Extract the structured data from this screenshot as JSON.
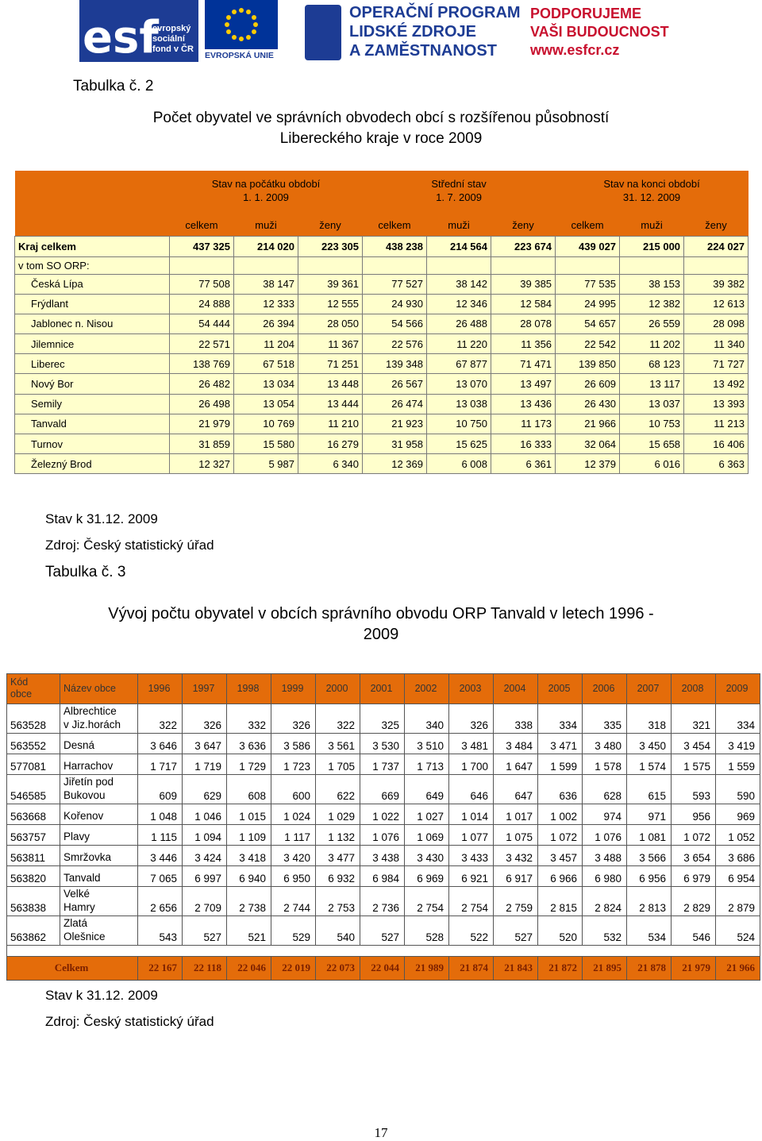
{
  "header": {
    "esf": "esf",
    "esf_text": [
      "evropský",
      "sociální",
      "fond v ČR"
    ],
    "eu": "EVROPSKÁ UNIE",
    "op": [
      "OPERAČNÍ PROGRAM",
      "LIDSKÉ ZDROJE",
      "A ZAMĚSTNANOST"
    ],
    "slogan": [
      "PODPORUJEME",
      "VAŠI BUDOUCNOST"
    ],
    "url": "www.esfcr.cz"
  },
  "table1": {
    "label": "Tabulka č. 2",
    "title": [
      "Počet obyvatel ve správních obvodech obcí s rozšířenou působností",
      "Libereckého kraje v roce 2009"
    ],
    "groups": [
      [
        "Stav na počátku období",
        "1. 1. 2009"
      ],
      [
        "Střední stav",
        "1. 7. 2009"
      ],
      [
        "Stav na konci období",
        "31. 12. 2009"
      ]
    ],
    "subheaders": [
      "celkem",
      "muži",
      "ženy",
      "celkem",
      "muži",
      "ženy",
      "celkem",
      "muži",
      "ženy"
    ],
    "total": [
      "Kraj celkem",
      "437 325",
      "214 020",
      "223 305",
      "438 238",
      "214 564",
      "223 674",
      "439 027",
      "215 000",
      "224 027"
    ],
    "subtitle": "v tom SO ORP:",
    "rows": [
      [
        "Česká Lípa",
        "77 508",
        "38 147",
        "39 361",
        "77 527",
        "38 142",
        "39 385",
        "77 535",
        "38 153",
        "39 382"
      ],
      [
        "Frýdlant",
        "24 888",
        "12 333",
        "12 555",
        "24 930",
        "12 346",
        "12 584",
        "24 995",
        "12 382",
        "12 613"
      ],
      [
        "Jablonec n. Nisou",
        "54 444",
        "26 394",
        "28 050",
        "54 566",
        "26 488",
        "28 078",
        "54 657",
        "26 559",
        "28 098"
      ],
      [
        "Jilemnice",
        "22 571",
        "11 204",
        "11 367",
        "22 576",
        "11 220",
        "11 356",
        "22 542",
        "11 202",
        "11 340"
      ],
      [
        "Liberec",
        "138 769",
        "67 518",
        "71 251",
        "139 348",
        "67 877",
        "71 471",
        "139 850",
        "68 123",
        "71 727"
      ],
      [
        "Nový Bor",
        "26 482",
        "13 034",
        "13 448",
        "26 567",
        "13 070",
        "13 497",
        "26 609",
        "13 117",
        "13 492"
      ],
      [
        "Semily",
        "26 498",
        "13 054",
        "13 444",
        "26 474",
        "13 038",
        "13 436",
        "26 430",
        "13 037",
        "13 393"
      ],
      [
        "Tanvald",
        "21 979",
        "10 769",
        "11 210",
        "21 923",
        "10 750",
        "11 173",
        "21 966",
        "10 753",
        "11 213"
      ],
      [
        "Turnov",
        "31 859",
        "15 580",
        "16 279",
        "31 958",
        "15 625",
        "16 333",
        "32 064",
        "15 658",
        "16 406"
      ],
      [
        "Železný Brod",
        "12 327",
        "5 987",
        "6 340",
        "12 369",
        "6 008",
        "6 361",
        "12 379",
        "6 016",
        "6 363"
      ]
    ],
    "notes": [
      "Stav k 31.12. 2009",
      "Zdroj: Český statistický úřad"
    ]
  },
  "table2": {
    "label": "Tabulka č. 3",
    "title": [
      "Vývoj počtu obyvatel v obcích správního obvodu ORP Tanvald v letech 1996 -",
      "2009"
    ],
    "code_header": [
      "Kód",
      "obce"
    ],
    "name_header": "Název obce",
    "years": [
      "1996",
      "1997",
      "1998",
      "1999",
      "2000",
      "2001",
      "2002",
      "2003",
      "2004",
      "2005",
      "2006",
      "2007",
      "2008",
      "2009"
    ],
    "rows": [
      {
        "code": "563528",
        "name": [
          "Albrechtice",
          "v Jiz.horách"
        ],
        "values": [
          "322",
          "326",
          "332",
          "326",
          "322",
          "325",
          "340",
          "326",
          "338",
          "334",
          "335",
          "318",
          "321",
          "334"
        ]
      },
      {
        "code": "563552",
        "name": [
          "Desná"
        ],
        "values": [
          "3 646",
          "3 647",
          "3 636",
          "3 586",
          "3 561",
          "3 530",
          "3 510",
          "3 481",
          "3 484",
          "3 471",
          "3 480",
          "3 450",
          "3 454",
          "3 419"
        ]
      },
      {
        "code": "577081",
        "name": [
          "Harrachov"
        ],
        "values": [
          "1 717",
          "1 719",
          "1 729",
          "1 723",
          "1 705",
          "1 737",
          "1 713",
          "1 700",
          "1 647",
          "1 599",
          "1 578",
          "1 574",
          "1 575",
          "1 559"
        ]
      },
      {
        "code": "546585",
        "name": [
          "Jiřetín pod",
          "Bukovou"
        ],
        "values": [
          "609",
          "629",
          "608",
          "600",
          "622",
          "669",
          "649",
          "646",
          "647",
          "636",
          "628",
          "615",
          "593",
          "590"
        ]
      },
      {
        "code": "563668",
        "name": [
          "Kořenov"
        ],
        "values": [
          "1 048",
          "1 046",
          "1 015",
          "1 024",
          "1 029",
          "1 022",
          "1 027",
          "1 014",
          "1 017",
          "1 002",
          "974",
          "971",
          "956",
          "969"
        ]
      },
      {
        "code": "563757",
        "name": [
          "Plavy"
        ],
        "values": [
          "1 115",
          "1 094",
          "1 109",
          "1 117",
          "1 132",
          "1 076",
          "1 069",
          "1 077",
          "1 075",
          "1 072",
          "1 076",
          "1 081",
          "1 072",
          "1 052"
        ]
      },
      {
        "code": "563811",
        "name": [
          "Smržovka"
        ],
        "values": [
          "3 446",
          "3 424",
          "3 418",
          "3 420",
          "3 477",
          "3 438",
          "3 430",
          "3 433",
          "3 432",
          "3 457",
          "3 488",
          "3 566",
          "3 654",
          "3 686"
        ]
      },
      {
        "code": "563820",
        "name": [
          "Tanvald"
        ],
        "values": [
          "7 065",
          "6 997",
          "6 940",
          "6 950",
          "6 932",
          "6 984",
          "6 969",
          "6 921",
          "6 917",
          "6 966",
          "6 980",
          "6 956",
          "6 979",
          "6 954"
        ]
      },
      {
        "code": "563838",
        "name": [
          "Velké",
          "Hamry"
        ],
        "values": [
          "2 656",
          "2 709",
          "2 738",
          "2 744",
          "2 753",
          "2 736",
          "2 754",
          "2 754",
          "2 759",
          "2 815",
          "2 824",
          "2 813",
          "2 829",
          "2 879"
        ]
      },
      {
        "code": "563862",
        "name": [
          "Zlatá",
          "Olešnice"
        ],
        "values": [
          "543",
          "527",
          "521",
          "529",
          "540",
          "527",
          "528",
          "522",
          "527",
          "520",
          "532",
          "534",
          "546",
          "524"
        ]
      }
    ],
    "total_label": "Celkem",
    "total": [
      "22 167",
      "22 118",
      "22 046",
      "22 019",
      "22 073",
      "22 044",
      "21 989",
      "21 874",
      "21 843",
      "21 872",
      "21 895",
      "21 878",
      "21 979",
      "21 966"
    ],
    "notes": [
      "Stav k 31.12. 2009",
      "Zdroj: Český statistický úřad"
    ]
  },
  "page_number": "17"
}
